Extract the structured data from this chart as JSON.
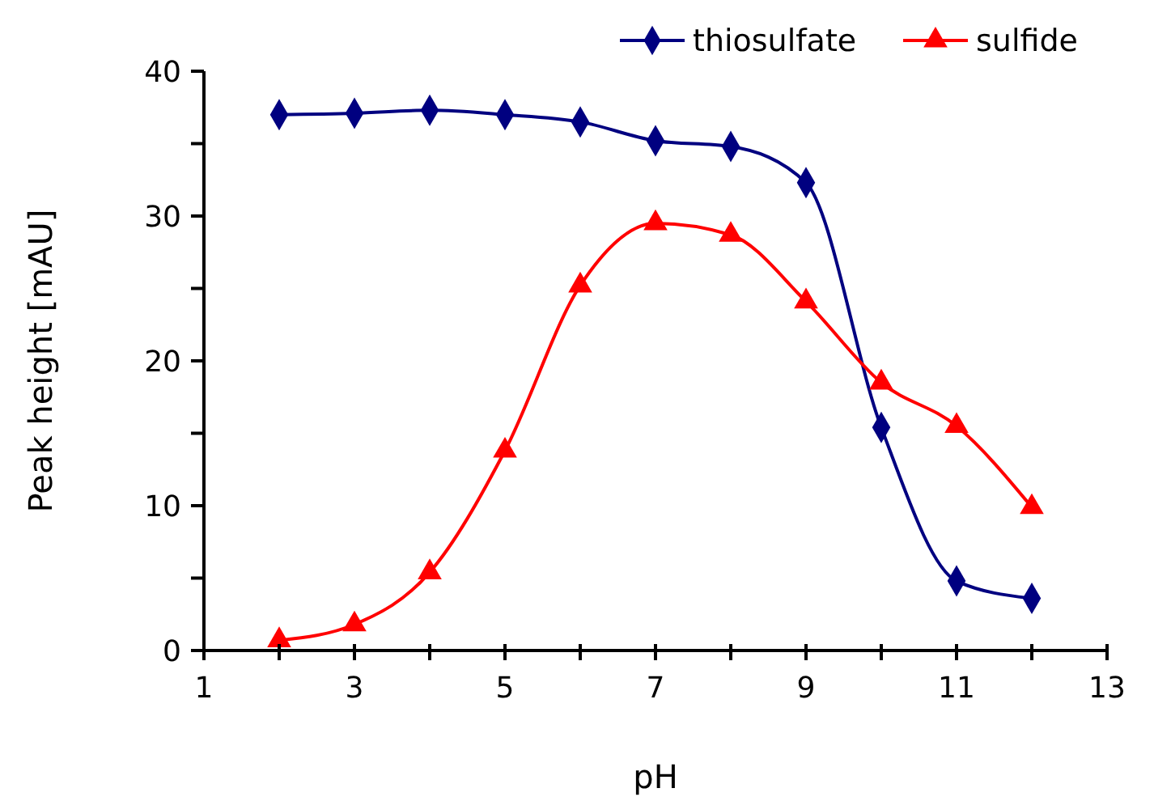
{
  "chart_data": {
    "type": "line",
    "xlabel": "pH",
    "ylabel": "Peak height [mAU]",
    "xlim": [
      1,
      13
    ],
    "xticks": [
      1,
      {
        "value": 2,
        "label": null
      },
      3,
      {
        "value": 4,
        "label": null
      },
      5,
      {
        "value": 6,
        "label": null
      },
      7,
      {
        "value": 8,
        "label": null
      },
      9,
      {
        "value": 10,
        "label": null
      },
      11,
      {
        "value": 12,
        "label": null
      },
      13
    ],
    "ylim": [
      0,
      40
    ],
    "yticks": [
      0,
      {
        "value": 5,
        "label": null
      },
      10,
      {
        "value": 15,
        "label": null
      },
      20,
      {
        "value": 25,
        "label": null
      },
      30,
      {
        "value": 35,
        "label": null
      },
      40
    ],
    "x": [
      2,
      3,
      4,
      5,
      6,
      7,
      8,
      9,
      10,
      11,
      12
    ],
    "series": [
      {
        "name": "thiosulfate",
        "color": "#000080",
        "marker": "diamond",
        "values": [
          37.0,
          37.1,
          37.3,
          37.0,
          36.5,
          35.2,
          34.8,
          32.3,
          15.4,
          4.8,
          3.6
        ]
      },
      {
        "name": "sulfide",
        "color": "#ff0000",
        "marker": "triangle",
        "values": [
          0.7,
          1.8,
          5.4,
          13.8,
          25.2,
          29.5,
          28.7,
          24.1,
          18.5,
          15.5,
          9.9
        ]
      }
    ],
    "grid": false,
    "legend": "top right",
    "line_style": "solid"
  }
}
